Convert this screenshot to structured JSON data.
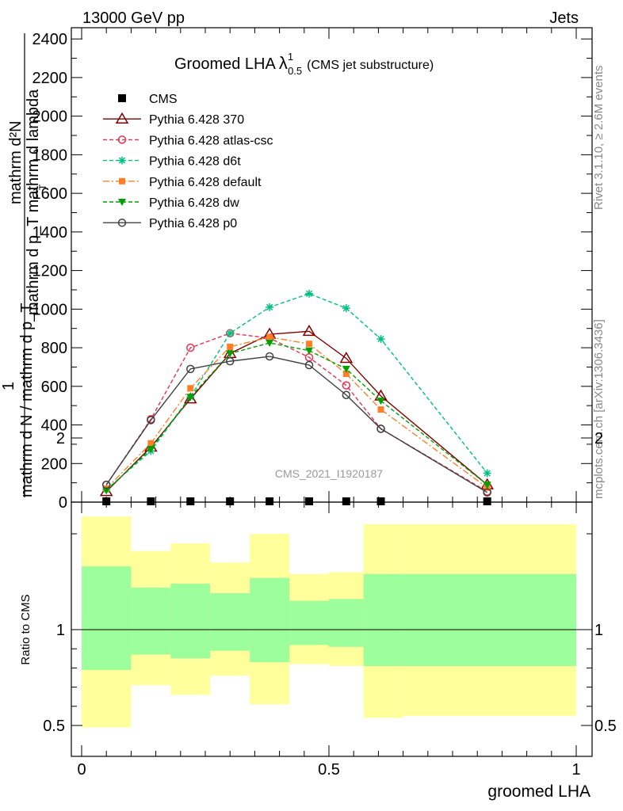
{
  "header": {
    "left": "13000 GeV pp",
    "right": "Jets"
  },
  "side_labels": {
    "rivet": "Rivet 3.1.10, ≥ 2.6M events",
    "mcplots": "mcplots.cern.ch [arXiv:1306.3436]"
  },
  "watermark": "CMS_2021_I1920187",
  "chart_data": [
    {
      "type": "line",
      "title_main": "Groomed LHA",
      "title_symbol": "λ",
      "title_sup": "1",
      "title_sub": "0.5",
      "title_suffix": "(CMS jet substructure)",
      "ylabel_line1": "mathrm d²N",
      "ylabel_line2": "mathrm d p_T mathrm d lambda",
      "ylabel_subT": "T",
      "ylabel_line3": "1",
      "ylabel_line4": "mathrm d N / mathrm d p_T",
      "xlabel": "",
      "ylim": [
        0,
        2450
      ],
      "yticks": [
        "2400",
        "2200",
        "2000",
        "1800",
        "1600",
        "1400",
        "1200",
        "1000",
        "800",
        "600",
        "400",
        "200",
        "0"
      ],
      "ytick_values": [
        2400,
        2200,
        2000,
        1800,
        1600,
        1400,
        1200,
        1000,
        800,
        600,
        400,
        200,
        0
      ],
      "x": [
        0.05,
        0.14,
        0.22,
        0.3,
        0.38,
        0.46,
        0.535,
        0.605,
        0.82
      ],
      "series": [
        {
          "name": "CMS",
          "color": "#000000",
          "dash": "",
          "marker": "square",
          "values": [
            0,
            0,
            0,
            0,
            0,
            0,
            0,
            0,
            0
          ]
        },
        {
          "name": "Pythia 6.428 370",
          "color": "#800000",
          "dash": "",
          "marker": "triangle-open",
          "values": [
            55,
            285,
            535,
            770,
            870,
            885,
            745,
            550,
            90
          ]
        },
        {
          "name": "Pythia 6.428 atlas-csc",
          "color": "#e8304f",
          "dash": "5,3",
          "marker": "circle-open",
          "values": [
            90,
            430,
            800,
            875,
            850,
            750,
            605,
            380,
            55
          ]
        },
        {
          "name": "Pythia 6.428 d6t",
          "color": "#00c080",
          "dash": "5,3",
          "marker": "star",
          "values": [
            65,
            265,
            545,
            875,
            1010,
            1080,
            1005,
            845,
            150
          ]
        },
        {
          "name": "Pythia 6.428 default",
          "color": "#ff7f27",
          "dash": "8,3,2,3",
          "marker": "square-filled",
          "values": [
            70,
            305,
            590,
            805,
            855,
            820,
            665,
            480,
            75
          ]
        },
        {
          "name": "Pythia 6.428 dw",
          "color": "#00a000",
          "dash": "5,3",
          "marker": "triangle-down",
          "values": [
            60,
            275,
            545,
            770,
            825,
            785,
            690,
            525,
            90
          ]
        },
        {
          "name": "Pythia 6.428 p0",
          "color": "#404040",
          "dash": "",
          "marker": "circle-open",
          "values": [
            90,
            425,
            690,
            730,
            755,
            710,
            555,
            380,
            50
          ]
        }
      ]
    },
    {
      "type": "area",
      "ylabel": "Ratio to CMS",
      "xlabel": "groomed LHA",
      "xlim": [
        0,
        1
      ],
      "xticks": [
        "0",
        "0.5",
        "1"
      ],
      "xtick_values": [
        0,
        0.5,
        1
      ],
      "ylim": [
        0.35,
        2.3
      ],
      "yticks": [
        "2",
        "1",
        "0.5"
      ],
      "ytick_values": [
        2,
        1,
        0.5
      ],
      "colors": {
        "inner": "#9cff9c",
        "outer": "#ffff9c"
      },
      "bins": [
        {
          "lo": 0.0,
          "hi": 0.1,
          "inner": [
            0.79,
            1.33
          ],
          "outer": [
            0.49,
            1.59
          ]
        },
        {
          "lo": 0.1,
          "hi": 0.18,
          "inner": [
            0.87,
            1.22
          ],
          "outer": [
            0.71,
            1.41
          ]
        },
        {
          "lo": 0.18,
          "hi": 0.26,
          "inner": [
            0.85,
            1.24
          ],
          "outer": [
            0.66,
            1.45
          ]
        },
        {
          "lo": 0.26,
          "hi": 0.34,
          "inner": [
            0.89,
            1.19
          ],
          "outer": [
            0.76,
            1.35
          ]
        },
        {
          "lo": 0.34,
          "hi": 0.42,
          "inner": [
            0.83,
            1.27
          ],
          "outer": [
            0.61,
            1.5
          ]
        },
        {
          "lo": 0.42,
          "hi": 0.5,
          "inner": [
            0.92,
            1.15
          ],
          "outer": [
            0.82,
            1.29
          ]
        },
        {
          "lo": 0.5,
          "hi": 0.57,
          "inner": [
            0.91,
            1.16
          ],
          "outer": [
            0.81,
            1.3
          ]
        },
        {
          "lo": 0.57,
          "hi": 0.65,
          "inner": [
            0.81,
            1.29
          ],
          "outer": [
            0.54,
            1.55
          ]
        },
        {
          "lo": 0.65,
          "hi": 1.0,
          "inner": [
            0.81,
            1.29
          ],
          "outer": [
            0.55,
            1.55
          ]
        }
      ]
    }
  ]
}
